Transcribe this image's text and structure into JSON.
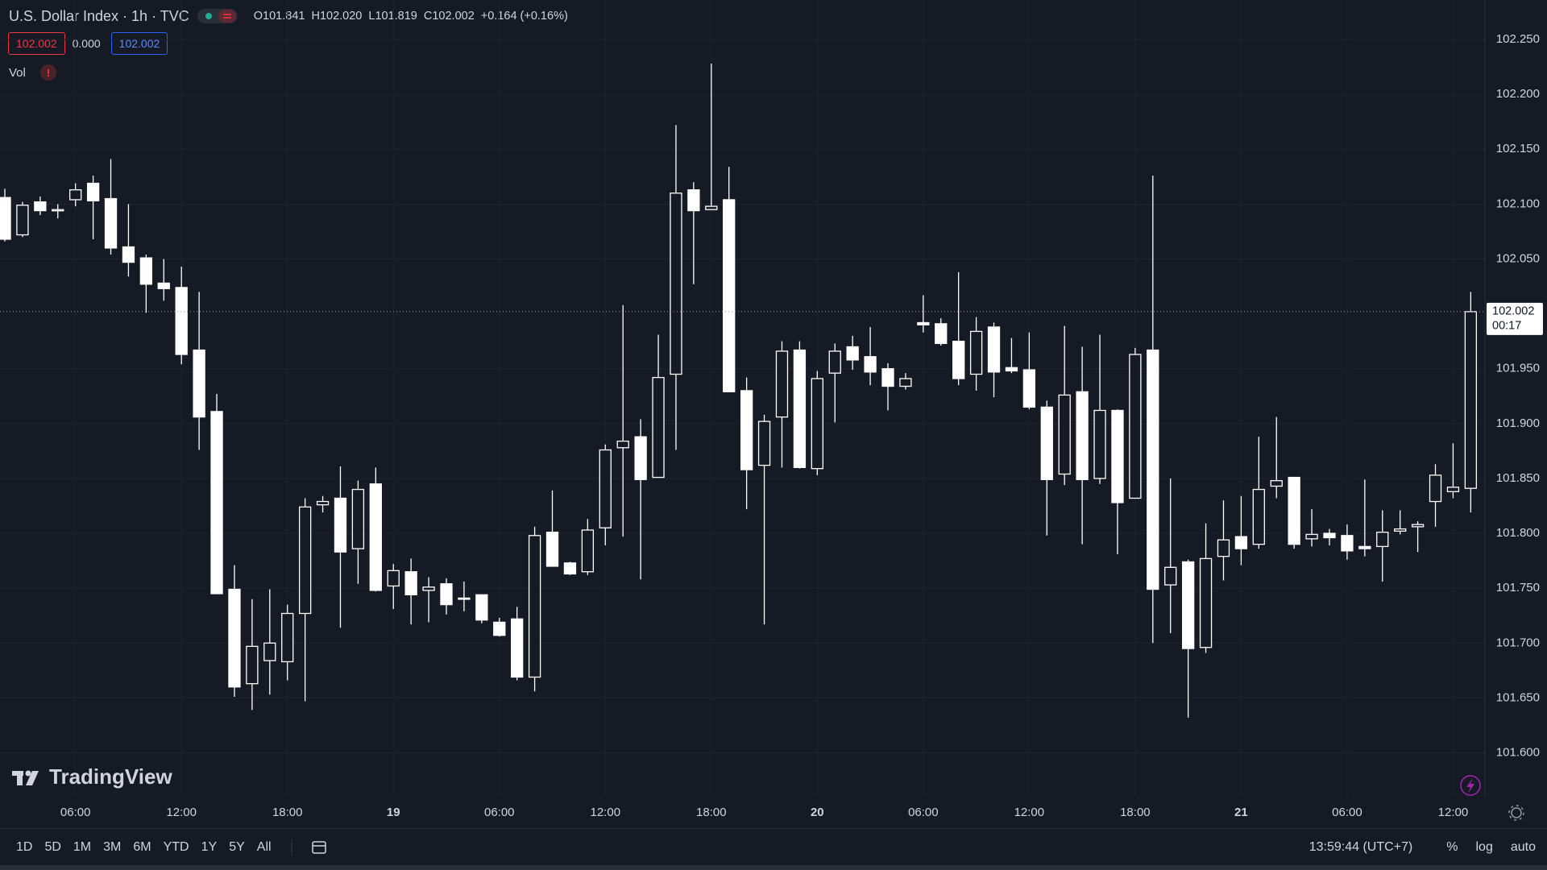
{
  "header": {
    "title": "U.S. Dollar Index · 1h · TVC",
    "ohlc": [
      {
        "key": "O",
        "value": "101.841"
      },
      {
        "key": "H",
        "value": "102.020"
      },
      {
        "key": "L",
        "value": "101.819"
      },
      {
        "key": "C",
        "value": "102.002"
      }
    ],
    "change": "+0.164 (+0.16%)",
    "bid": "102.002",
    "spread": "0.000",
    "ask": "102.002"
  },
  "indicator": {
    "name": "Vol",
    "alert": "!"
  },
  "logo": "TradingView",
  "toolbar": {
    "ranges": [
      "1D",
      "5D",
      "1M",
      "3M",
      "6M",
      "YTD",
      "1Y",
      "5Y",
      "All"
    ],
    "clock": "13:59:44 (UTC+7)",
    "options": [
      "%",
      "log",
      "auto"
    ]
  },
  "chart_data": {
    "type": "candlestick",
    "categories": [
      null,
      null,
      null,
      null,
      "06:00",
      null,
      null,
      null,
      null,
      null,
      "12:00",
      null,
      null,
      null,
      null,
      null,
      "18:00",
      null,
      null,
      null,
      null,
      null,
      "19",
      null,
      null,
      null,
      null,
      null,
      "06:00",
      null,
      null,
      null,
      null,
      null,
      "12:00",
      null,
      null,
      null,
      null,
      null,
      "18:00",
      null,
      null,
      null,
      null,
      null,
      "20",
      null,
      null,
      null,
      null,
      null,
      "06:00",
      null,
      null,
      null,
      null,
      null,
      "12:00",
      null,
      null,
      null,
      null,
      null,
      "18:00",
      null,
      null,
      null,
      null,
      null,
      "21",
      null,
      null,
      null,
      null,
      null,
      "06:00",
      null,
      null,
      null,
      null,
      null,
      "12:00",
      null
    ],
    "open": [
      102.106,
      102.072,
      102.102,
      102.094,
      102.104,
      102.119,
      102.105,
      102.061,
      102.051,
      102.028,
      102.024,
      101.967,
      101.911,
      101.749,
      101.663,
      101.684,
      101.683,
      101.727,
      101.826,
      101.832,
      101.786,
      101.845,
      101.752,
      101.765,
      101.748,
      101.754,
      101.741,
      101.744,
      101.719,
      101.722,
      101.669,
      101.801,
      101.773,
      101.765,
      101.805,
      101.878,
      101.888,
      101.851,
      101.945,
      102.113,
      102.095,
      102.104,
      101.93,
      101.862,
      101.906,
      101.967,
      101.859,
      101.946,
      101.97,
      101.961,
      101.95,
      101.934,
      101.992,
      101.991,
      101.975,
      101.945,
      101.988,
      101.951,
      101.949,
      101.915,
      101.854,
      101.929,
      101.85,
      101.912,
      101.832,
      101.967,
      101.753,
      101.774,
      101.696,
      101.779,
      101.797,
      101.79,
      101.843,
      101.851,
      101.795,
      101.8,
      101.798,
      101.788,
      101.788,
      101.802,
      101.806,
      101.829,
      101.838,
      101.841
    ],
    "high": [
      102.114,
      102.102,
      102.107,
      102.1,
      102.119,
      102.126,
      102.141,
      102.1,
      102.054,
      102.05,
      102.043,
      102.02,
      101.927,
      101.771,
      101.74,
      101.749,
      101.735,
      101.832,
      101.834,
      101.861,
      101.848,
      101.86,
      101.772,
      101.777,
      101.76,
      101.759,
      101.756,
      101.744,
      101.723,
      101.733,
      101.806,
      101.839,
      101.774,
      101.813,
      101.881,
      102.008,
      101.904,
      101.981,
      102.172,
      102.12,
      102.228,
      102.134,
      101.942,
      101.908,
      101.975,
      101.975,
      101.948,
      101.973,
      101.98,
      101.988,
      101.955,
      101.946,
      102.017,
      101.996,
      102.038,
      101.997,
      101.992,
      101.978,
      101.983,
      101.921,
      101.989,
      101.97,
      101.981,
      101.913,
      101.969,
      102.126,
      101.85,
      101.776,
      101.809,
      101.83,
      101.834,
      101.888,
      101.906,
      101.851,
      101.822,
      101.804,
      101.808,
      101.849,
      101.821,
      101.821,
      101.811,
      101.863,
      101.882,
      102.02
    ],
    "low": [
      102.066,
      102.07,
      102.09,
      102.087,
      102.098,
      102.068,
      102.054,
      102.034,
      102.001,
      102.012,
      101.954,
      101.876,
      101.745,
      101.651,
      101.639,
      101.653,
      101.666,
      101.647,
      101.819,
      101.714,
      101.754,
      101.747,
      101.731,
      101.717,
      101.719,
      101.726,
      101.729,
      101.718,
      101.706,
      101.666,
      101.656,
      101.77,
      101.762,
      101.762,
      101.789,
      101.797,
      101.758,
      101.851,
      101.876,
      102.027,
      102.095,
      101.929,
      101.822,
      101.717,
      101.86,
      101.859,
      101.853,
      101.901,
      101.949,
      101.935,
      101.912,
      101.931,
      101.983,
      101.971,
      101.935,
      101.93,
      101.924,
      101.946,
      101.913,
      101.798,
      101.844,
      101.79,
      101.845,
      101.781,
      101.832,
      101.7,
      101.709,
      101.632,
      101.691,
      101.757,
      101.771,
      101.786,
      101.832,
      101.786,
      101.788,
      101.789,
      101.776,
      101.779,
      101.756,
      101.799,
      101.783,
      101.806,
      101.832,
      101.819
    ],
    "close": [
      102.068,
      102.099,
      102.094,
      102.095,
      102.113,
      102.103,
      102.06,
      102.047,
      102.027,
      102.023,
      101.963,
      101.906,
      101.745,
      101.66,
      101.697,
      101.7,
      101.727,
      101.824,
      101.829,
      101.783,
      101.84,
      101.748,
      101.766,
      101.744,
      101.751,
      101.735,
      101.74,
      101.721,
      101.707,
      101.669,
      101.798,
      101.77,
      101.763,
      101.803,
      101.876,
      101.884,
      101.849,
      101.942,
      102.11,
      102.094,
      102.098,
      101.929,
      101.858,
      101.902,
      101.966,
      101.86,
      101.941,
      101.966,
      101.958,
      101.947,
      101.934,
      101.941,
      101.99,
      101.973,
      101.941,
      101.984,
      101.947,
      101.948,
      101.915,
      101.849,
      101.926,
      101.849,
      101.912,
      101.828,
      101.963,
      101.749,
      101.769,
      101.695,
      101.777,
      101.794,
      101.786,
      101.84,
      101.848,
      101.79,
      101.799,
      101.796,
      101.784,
      101.786,
      101.801,
      101.804,
      101.808,
      101.853,
      101.842,
      102.002
    ],
    "ylim": [
      101.56,
      102.286
    ],
    "yticks": [
      {
        "value": 101.6,
        "label": "101.600"
      },
      {
        "value": 101.65,
        "label": "101.650"
      },
      {
        "value": 101.7,
        "label": "101.700"
      },
      {
        "value": 101.75,
        "label": "101.750"
      },
      {
        "value": 101.8,
        "label": "101.800"
      },
      {
        "value": 101.85,
        "label": "101.850"
      },
      {
        "value": 101.9,
        "label": "101.900"
      },
      {
        "value": 101.95,
        "label": "101.950"
      },
      {
        "value": 102.05,
        "label": "102.050"
      },
      {
        "value": 102.1,
        "label": "102.100"
      },
      {
        "value": 102.15,
        "label": "102.150"
      },
      {
        "value": 102.2,
        "label": "102.200"
      },
      {
        "value": 102.25,
        "label": "102.250"
      }
    ],
    "last_price": 102.002,
    "countdown": "00:17",
    "grid": true,
    "up_color": "#ffffff",
    "down_color": "#ffffff"
  }
}
